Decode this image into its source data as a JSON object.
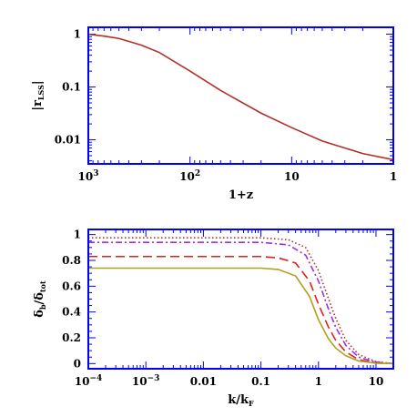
{
  "chart_data": [
    {
      "type": "line",
      "xscale": "log",
      "yscale": "log",
      "x_reversed": true,
      "xlabel": "1+z",
      "ylabel": "|r_LSS|",
      "xlim": [
        1000,
        1
      ],
      "ylim": [
        0.0035,
        1.35
      ],
      "xtick_labels": [
        "10^3",
        "10^2",
        "10",
        "1"
      ],
      "ytick_labels": [
        "1",
        "0.1",
        "0.01"
      ],
      "grid": false,
      "series": [
        {
          "color": "#b0302a",
          "style": "solid",
          "x": [
            1000,
            700,
            500,
            300,
            200,
            100,
            50,
            20,
            10,
            5,
            2,
            1
          ],
          "y": [
            1.0,
            0.92,
            0.83,
            0.62,
            0.45,
            0.2,
            0.086,
            0.032,
            0.017,
            0.0095,
            0.0055,
            0.0042
          ]
        }
      ]
    },
    {
      "type": "line",
      "xscale": "log",
      "yscale": "linear",
      "xlabel": "k/k_F",
      "ylabel": "δ_b/δ_tot",
      "xlim": [
        0.0001,
        20
      ],
      "ylim": [
        -0.04,
        1.04
      ],
      "xtick_labels": [
        "10^-4",
        "10^-3",
        "0.01",
        "0.1",
        "1",
        "10"
      ],
      "ytick_labels": [
        "0",
        "0.2",
        "0.4",
        "0.6",
        "0.8",
        "1"
      ],
      "grid": false,
      "series": [
        {
          "color": "#b0302a",
          "style": "dotted",
          "x": [
            0.0001,
            0.0003,
            0.001,
            0.01,
            0.1,
            0.3,
            0.6,
            1,
            1.5,
            2,
            3,
            5,
            10,
            20
          ],
          "y": [
            0.975,
            0.975,
            0.975,
            0.975,
            0.975,
            0.96,
            0.9,
            0.72,
            0.5,
            0.35,
            0.18,
            0.07,
            0.015,
            0.0
          ]
        },
        {
          "color": "#9a30e0",
          "style": "dash-dot",
          "x": [
            0.0001,
            0.0003,
            0.001,
            0.01,
            0.1,
            0.3,
            0.6,
            1,
            1.5,
            2,
            3,
            5,
            10,
            20
          ],
          "y": [
            0.94,
            0.94,
            0.94,
            0.94,
            0.94,
            0.92,
            0.84,
            0.64,
            0.42,
            0.28,
            0.14,
            0.05,
            0.01,
            0.0
          ]
        },
        {
          "color": "#e02020",
          "style": "dashed",
          "x": [
            0.0001,
            0.0003,
            0.001,
            0.01,
            0.1,
            0.2,
            0.4,
            0.7,
            1,
            1.5,
            2,
            3,
            5,
            10,
            20
          ],
          "y": [
            0.83,
            0.83,
            0.83,
            0.83,
            0.83,
            0.82,
            0.78,
            0.64,
            0.46,
            0.28,
            0.18,
            0.09,
            0.03,
            0.005,
            0.0
          ]
        },
        {
          "color": "#b0a020",
          "style": "solid",
          "x": [
            0.0001,
            0.0003,
            0.001,
            0.01,
            0.1,
            0.2,
            0.4,
            0.7,
            1,
            1.5,
            2,
            3,
            5,
            10,
            20
          ],
          "y": [
            0.74,
            0.74,
            0.74,
            0.74,
            0.74,
            0.73,
            0.68,
            0.52,
            0.34,
            0.19,
            0.12,
            0.06,
            0.02,
            0.003,
            0.0
          ]
        }
      ]
    }
  ]
}
